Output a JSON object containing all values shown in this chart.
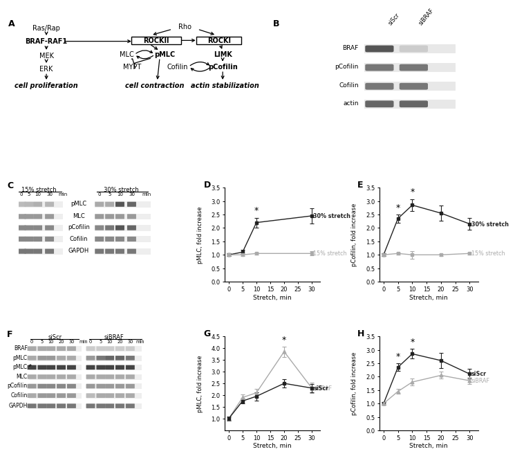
{
  "panel_D": {
    "xlabel": "Stretch, min",
    "ylabel": "pMLC, fold increase",
    "ylim": [
      0.0,
      3.5
    ],
    "yticks": [
      0.0,
      0.5,
      1.0,
      1.5,
      2.0,
      2.5,
      3.0,
      3.5
    ],
    "xticks": [
      0,
      5,
      10,
      15,
      20,
      25,
      30
    ],
    "series": [
      {
        "label": "30% stretch",
        "x": [
          0,
          5,
          10,
          30
        ],
        "y": [
          1.0,
          1.1,
          2.2,
          2.45
        ],
        "yerr": [
          0.05,
          0.08,
          0.18,
          0.28
        ],
        "color": "#222222",
        "marker": "s"
      },
      {
        "label": "15% stretch",
        "x": [
          0,
          5,
          10,
          30
        ],
        "y": [
          1.0,
          1.0,
          1.05,
          1.05
        ],
        "yerr": [
          0.04,
          0.04,
          0.04,
          0.08
        ],
        "color": "#aaaaaa",
        "marker": "s"
      }
    ],
    "stars": [
      {
        "series": 0,
        "xi": 2
      }
    ]
  },
  "panel_E": {
    "xlabel": "Stretch, min",
    "ylabel": "pCofilin, fold increase",
    "ylim": [
      0.0,
      3.5
    ],
    "yticks": [
      0.0,
      0.5,
      1.0,
      1.5,
      2.0,
      2.5,
      3.0,
      3.5
    ],
    "xticks": [
      0,
      5,
      10,
      15,
      20,
      25,
      30
    ],
    "series": [
      {
        "label": "30% stretch",
        "x": [
          0,
          5,
          10,
          20,
          30
        ],
        "y": [
          1.0,
          2.35,
          2.85,
          2.55,
          2.15
        ],
        "yerr": [
          0.05,
          0.15,
          0.22,
          0.28,
          0.22
        ],
        "color": "#222222",
        "marker": "s"
      },
      {
        "label": "15% stretch",
        "x": [
          0,
          5,
          10,
          20,
          30
        ],
        "y": [
          1.0,
          1.05,
          1.0,
          1.0,
          1.05
        ],
        "yerr": [
          0.04,
          0.04,
          0.14,
          0.04,
          0.04
        ],
        "color": "#aaaaaa",
        "marker": "s"
      }
    ],
    "stars": [
      {
        "series": 0,
        "xi": 1
      },
      {
        "series": 0,
        "xi": 2
      }
    ]
  },
  "panel_G": {
    "xlabel": "Stretch, min",
    "ylabel": "pMLC, fold increase",
    "ylim": [
      0.5,
      4.5
    ],
    "yticks": [
      1.0,
      1.5,
      2.0,
      2.5,
      3.0,
      3.5,
      4.0,
      4.5
    ],
    "xticks": [
      0,
      5,
      10,
      15,
      20,
      25,
      30
    ],
    "series": [
      {
        "label": "siBRAF",
        "x": [
          0,
          5,
          10,
          20,
          30
        ],
        "y": [
          1.0,
          1.9,
          2.1,
          3.85,
          2.3
        ],
        "yerr": [
          0.05,
          0.14,
          0.18,
          0.22,
          0.22
        ],
        "color": "#aaaaaa",
        "marker": "^"
      },
      {
        "label": "siScr",
        "x": [
          0,
          5,
          10,
          20,
          30
        ],
        "y": [
          1.0,
          1.75,
          1.95,
          2.5,
          2.3
        ],
        "yerr": [
          0.09,
          0.09,
          0.18,
          0.18,
          0.18
        ],
        "color": "#222222",
        "marker": "s"
      }
    ],
    "stars": [
      {
        "series": 0,
        "xi": 3
      }
    ]
  },
  "panel_H": {
    "xlabel": "Stretch, min",
    "ylabel": "pCofilin, fold increase",
    "ylim": [
      0.0,
      3.5
    ],
    "yticks": [
      0.0,
      0.5,
      1.0,
      1.5,
      2.0,
      2.5,
      3.0,
      3.5
    ],
    "xticks": [
      0,
      5,
      10,
      15,
      20,
      25,
      30
    ],
    "series": [
      {
        "label": "siScr",
        "x": [
          0,
          5,
          10,
          20,
          30
        ],
        "y": [
          1.0,
          2.35,
          2.85,
          2.6,
          2.1
        ],
        "yerr": [
          0.05,
          0.14,
          0.18,
          0.28,
          0.18
        ],
        "color": "#222222",
        "marker": "s"
      },
      {
        "label": "siBRAF",
        "x": [
          0,
          5,
          10,
          20,
          30
        ],
        "y": [
          1.0,
          1.45,
          1.8,
          2.05,
          1.85
        ],
        "yerr": [
          0.04,
          0.09,
          0.13,
          0.13,
          0.13
        ],
        "color": "#aaaaaa",
        "marker": "^"
      }
    ],
    "stars": [
      {
        "series": 0,
        "xi": 1
      },
      {
        "series": 0,
        "xi": 2
      }
    ]
  }
}
